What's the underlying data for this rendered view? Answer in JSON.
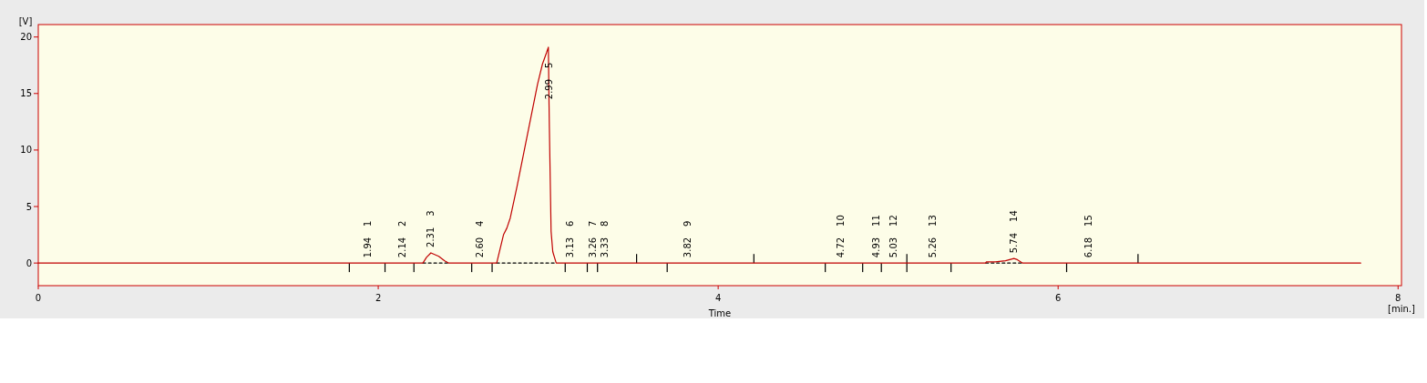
{
  "chart_data": {
    "type": "line",
    "xlabel": "Time",
    "ylabel": "[V]",
    "xlim": [
      0,
      8.02
    ],
    "xticks": [
      0,
      2,
      4,
      6,
      8
    ],
    "ylim": [
      -2,
      21.1
    ],
    "yticks": [
      0,
      5,
      10,
      15,
      20
    ],
    "series": [
      {
        "color": "#000000",
        "line_style": "dashed",
        "x": [
          2.263,
          2.415
        ],
        "values": [
          0,
          0
        ]
      },
      {
        "color": "#000000",
        "line_style": "dashed",
        "x": [
          2.697,
          3.047
        ],
        "values": [
          0,
          0
        ]
      },
      {
        "color": "#000000",
        "line_style": "dashed",
        "x": [
          5.574,
          5.791
        ],
        "values": [
          0,
          0
        ]
      },
      {
        "type": "bar",
        "color": "#000000",
        "x": [
          1.83,
          2.04,
          2.21,
          2.55,
          2.67,
          3.1,
          3.23,
          3.29,
          3.52,
          3.7,
          4.21,
          4.63,
          4.85,
          4.96,
          5.11,
          5.37,
          6.05,
          6.47
        ],
        "base": [
          0,
          0,
          0,
          0,
          0,
          0,
          0,
          0,
          0,
          0,
          0,
          0,
          0,
          0,
          -0.8,
          0,
          0,
          0
        ],
        "values": [
          -0.8,
          -0.8,
          -0.8,
          -0.8,
          -0.8,
          -0.8,
          -0.8,
          -0.8,
          0.8,
          -0.8,
          0.8,
          -0.8,
          -0.8,
          -0.8,
          1.6,
          -0.8,
          -0.8,
          0.8
        ]
      },
      {
        "color": "#c00000",
        "x": [
          0,
          2.263,
          2.284,
          2.31,
          2.356,
          2.391,
          2.415,
          2.697,
          2.737,
          2.757,
          2.777,
          2.817,
          2.857,
          2.897,
          2.937,
          2.966,
          2.99,
          3.001,
          3.005,
          3.007,
          3.017,
          3.027,
          3.047,
          5.574,
          5.577,
          5.63,
          5.69,
          5.74,
          5.76,
          5.791,
          7.78
        ],
        "values": [
          0,
          0,
          0.5,
          0.9,
          0.6,
          0.2,
          0,
          0,
          2.5,
          3.1,
          4.0,
          6.8,
          9.8,
          12.8,
          15.8,
          17.6,
          18.6,
          19.1,
          14.0,
          11.9,
          2.8,
          1.0,
          0,
          0,
          0.1,
          0.1,
          0.2,
          0.4,
          0.3,
          0,
          0
        ]
      }
    ],
    "annotations": [
      "[min.]",
      {
        "text": "1.94",
        "x": 1.94,
        "y": 0
      },
      {
        "text": "2.14",
        "x": 2.14,
        "y": 0
      },
      {
        "text": "2.31",
        "x": 2.31,
        "y": 0.9
      },
      {
        "text": "2.60",
        "x": 2.6,
        "y": 0
      },
      {
        "text": "2.99",
        "x": 3.005,
        "y": 14.0
      },
      {
        "text": "3.13",
        "x": 3.13,
        "y": 0
      },
      {
        "text": "3.26",
        "x": 3.26,
        "y": 0
      },
      {
        "text": "3.33",
        "x": 3.33,
        "y": 0
      },
      {
        "text": "3.82",
        "x": 3.82,
        "y": 0
      },
      {
        "text": "4.72",
        "x": 4.72,
        "y": 0
      },
      {
        "text": "4.93",
        "x": 4.93,
        "y": 0
      },
      {
        "text": "5.03",
        "x": 5.03,
        "y": 0
      },
      {
        "text": "5.26",
        "x": 5.26,
        "y": 0
      },
      {
        "text": "5.74",
        "x": 5.74,
        "y": 0.4
      },
      {
        "text": "6.18",
        "x": 6.18,
        "y": 0
      },
      "1",
      "2",
      "3",
      "4",
      "5",
      "6",
      "7",
      "8",
      "9",
      "10",
      "11",
      "12",
      "13",
      "14",
      "15"
    ]
  }
}
